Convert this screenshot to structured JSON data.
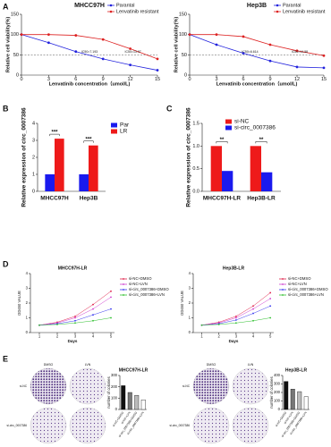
{
  "panel_labels": [
    "A",
    "B",
    "C",
    "D",
    "E"
  ],
  "chart_data": [
    {
      "type": "line",
      "title": "MHCC97H",
      "ylabel": "Relative cell viability(%)",
      "xlabel": "Lenvatinib concentration（umol/L)",
      "x": [
        0,
        3,
        6,
        9,
        12,
        15
      ],
      "xlim": [
        0,
        15
      ],
      "xticks": [
        0,
        3,
        6,
        9,
        12,
        15
      ],
      "ylim": [
        0,
        150
      ],
      "yticks": [
        0,
        50,
        100,
        150
      ],
      "reference_line": 50,
      "legend": "upper right",
      "annotations": [
        "IC50=7.193",
        "IC50=13.97"
      ],
      "series": [
        {
          "name": "Parantal",
          "color": "#2222dd",
          "values": [
            100,
            80,
            58,
            40,
            25,
            12
          ]
        },
        {
          "name": "Lenvatinib resistant",
          "color": "#dd2222",
          "values": [
            100,
            100,
            98,
            88,
            65,
            40
          ]
        }
      ]
    },
    {
      "type": "line",
      "title": "Hep3B",
      "ylabel": "Relative cell viability(%)",
      "xlabel": "Lenvatinib concentration（umol/L)",
      "x": [
        0,
        3,
        6,
        9,
        12,
        15
      ],
      "xlim": [
        0,
        15
      ],
      "xticks": [
        0,
        3,
        6,
        9,
        12,
        15
      ],
      "ylim": [
        0,
        150
      ],
      "yticks": [
        0,
        50,
        100,
        150
      ],
      "reference_line": 50,
      "legend": "upper right",
      "annotations": [
        "IC50=6.614",
        "IC50=14.58"
      ],
      "series": [
        {
          "name": "Parantal",
          "color": "#2222dd",
          "values": [
            100,
            75,
            54,
            35,
            20,
            18
          ]
        },
        {
          "name": "Lenvatinib resistant",
          "color": "#dd2222",
          "values": [
            100,
            100,
            95,
            75,
            60,
            48
          ]
        }
      ]
    },
    {
      "type": "bar",
      "ylabel": "Relative expression of circ_0007386",
      "categories": [
        "MHCC97H",
        "Hep3B"
      ],
      "ylim": [
        0,
        4
      ],
      "yticks": [
        0,
        1,
        2,
        3,
        4
      ],
      "legend": "outside right",
      "annotations": [
        "***",
        "***"
      ],
      "series": [
        {
          "name": "Par",
          "color": "#1a1aee",
          "values": [
            1,
            1
          ]
        },
        {
          "name": "LR",
          "color": "#ee1a1a",
          "values": [
            3.1,
            2.7
          ]
        }
      ]
    },
    {
      "type": "bar",
      "ylabel": "Relative expression of circ_0007386",
      "categories": [
        "MHCC97H-LR",
        "Hep3B-LR"
      ],
      "ylim": [
        0,
        1.5
      ],
      "yticks": [
        {
          "value": 0,
          "label": "0.0"
        },
        {
          "value": 0.5,
          "label": "0.5"
        },
        {
          "value": 1,
          "label": "1.0"
        },
        {
          "value": 1.5,
          "label": "1.5"
        }
      ],
      "legend": "upper right",
      "annotations": [
        "**",
        "**"
      ],
      "series": [
        {
          "name": "si-NC",
          "color": "#ee1a1a",
          "values": [
            1,
            1
          ]
        },
        {
          "name": "si-circ_0007386",
          "color": "#1a1aee",
          "values": [
            0.45,
            0.42
          ]
        }
      ]
    },
    {
      "type": "line",
      "title": "MHCC97H-LR",
      "ylabel": "OD450 VALUE",
      "xlabel": "Days",
      "x": [
        1,
        2,
        3,
        4,
        5
      ],
      "xlim": [
        0.5,
        5.2
      ],
      "xticks": [
        1,
        2,
        3,
        4,
        5
      ],
      "ylim": [
        0,
        4
      ],
      "yticks": [
        0,
        1,
        2,
        3,
        4
      ],
      "legend": "outside right",
      "series": [
        {
          "name": "si-NC+DMSO",
          "color": "#e0204a",
          "values": [
            0.5,
            0.7,
            1.1,
            1.9,
            2.8
          ]
        },
        {
          "name": "si-NC+LVN",
          "color": "#d040d0",
          "values": [
            0.5,
            0.65,
            1.0,
            1.6,
            2.4
          ]
        },
        {
          "name": "si-circ_0007386+DMSO",
          "color": "#3a3af0",
          "values": [
            0.5,
            0.6,
            0.8,
            1.2,
            1.6
          ]
        },
        {
          "name": "si-circ_0007386+LVN",
          "color": "#30c030",
          "values": [
            0.5,
            0.55,
            0.65,
            0.8,
            1.0
          ]
        }
      ]
    },
    {
      "type": "line",
      "title": "Hep3B-LR",
      "ylabel": "OD450 VALUE",
      "xlabel": "Days",
      "x": [
        1,
        2,
        3,
        4,
        5
      ],
      "xlim": [
        0.5,
        5.2
      ],
      "xticks": [
        1,
        2,
        3,
        4,
        5
      ],
      "ylim": [
        0,
        4
      ],
      "yticks": [
        0,
        1,
        2,
        3,
        4
      ],
      "legend": "outside right",
      "series": [
        {
          "name": "si-NC+DMSO",
          "color": "#e0204a",
          "values": [
            0.5,
            0.7,
            1.1,
            1.8,
            2.7
          ]
        },
        {
          "name": "si-NC+LVN",
          "color": "#d040d0",
          "values": [
            0.5,
            0.65,
            1.0,
            1.6,
            2.3
          ]
        },
        {
          "name": "si-circ_0007386+DMSO",
          "color": "#3a3af0",
          "values": [
            0.5,
            0.6,
            0.85,
            1.3,
            1.8
          ]
        },
        {
          "name": "si-circ_0007386+LVN",
          "color": "#30c030",
          "values": [
            0.5,
            0.55,
            0.65,
            0.8,
            1.0
          ]
        }
      ]
    },
    {
      "type": "bar",
      "title": "MHCC97H-LR",
      "ylabel": "number of colonies",
      "categories": [
        "si-NC+DMSO",
        "si-NC+LVN",
        "si-circ_0007386+DMSO",
        "si-circ_0007386+LVN"
      ],
      "ylim": [
        0,
        300
      ],
      "yticks": [
        0,
        100,
        200,
        300
      ],
      "series": [
        {
          "colors": [
            "#111111",
            "#777777",
            "#bbbbbb",
            "#ffffff"
          ],
          "values": [
            210,
            150,
            125,
            85
          ]
        }
      ]
    },
    {
      "type": "bar",
      "title": "Hep3B-LR",
      "ylabel": "number of colonies",
      "categories": [
        "si-NC+DMSO",
        "si-NC+LVN",
        "si-circ_0007386+DMSO",
        "si-circ_0007386+LVN"
      ],
      "ylim": [
        0,
        400
      ],
      "yticks": [
        0,
        100,
        200,
        300,
        400
      ],
      "series": [
        {
          "colors": [
            "#111111",
            "#777777",
            "#bbbbbb",
            "#ffffff"
          ],
          "values": [
            330,
            240,
            210,
            150
          ]
        }
      ]
    }
  ],
  "colony_images": [
    {
      "columns": [
        "DMSO",
        "LVN"
      ],
      "rows": [
        "si-NC",
        "si-circ_0007386"
      ]
    },
    {
      "columns": [
        "DMSO",
        "LVN"
      ],
      "rows": [
        "si-NC",
        "si-circ_0007386"
      ]
    }
  ]
}
